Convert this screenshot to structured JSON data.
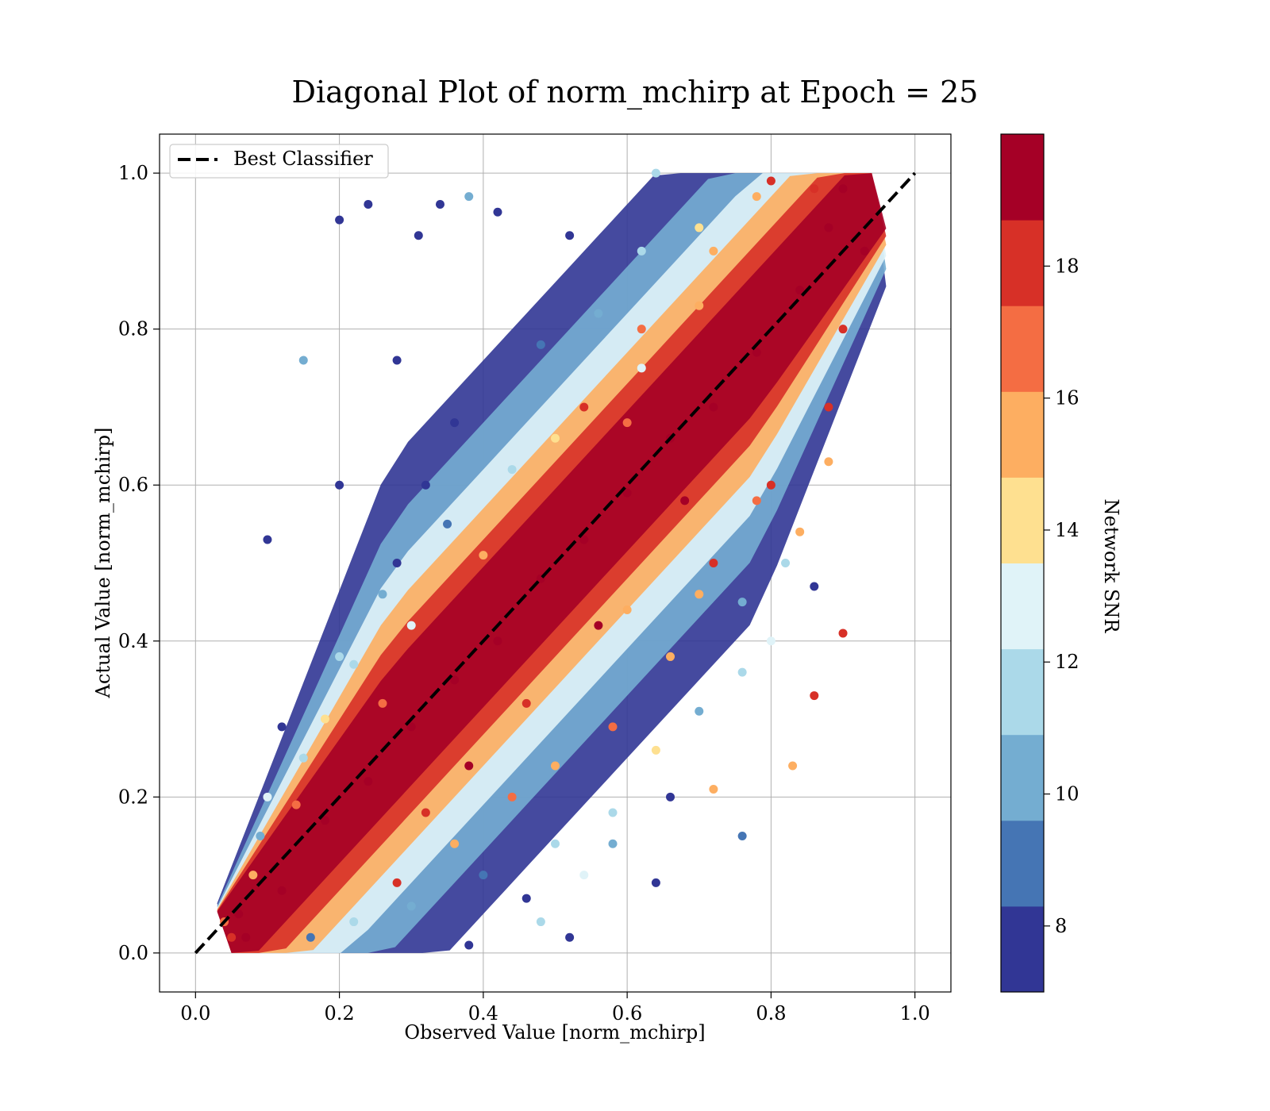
{
  "chart_data": {
    "type": "scatter",
    "title": "Diagonal Plot of norm_mchirp at Epoch = 25",
    "xlabel": "Observed Value [norm_mchirp]",
    "ylabel": "Actual Value [norm_mchirp]",
    "xlim": [
      -0.05,
      1.05
    ],
    "ylim": [
      -0.05,
      1.05
    ],
    "x_ticks": [
      "0.0",
      "0.2",
      "0.4",
      "0.6",
      "0.8",
      "1.0"
    ],
    "y_ticks": [
      "0.0",
      "0.2",
      "0.4",
      "0.6",
      "0.8",
      "1.0"
    ],
    "grid": true,
    "legend": {
      "position": "top-left",
      "entries": [
        {
          "label": "Best Classifier",
          "style": "black dashed line"
        }
      ]
    },
    "reference_line": {
      "label": "Best Classifier",
      "x": [
        0.0,
        1.0
      ],
      "y": [
        0.0,
        1.0
      ],
      "color": "#000000",
      "dash": "dashed"
    },
    "colorbar": {
      "label": "Network SNR",
      "range": [
        7,
        20
      ],
      "ticks": [
        "8",
        "10",
        "12",
        "14",
        "16",
        "18"
      ],
      "tick_values": [
        8,
        10,
        12,
        14,
        16,
        18
      ],
      "colormap": "RdYlBu_r (discrete, 10 levels)",
      "colors": [
        "#313695",
        "#4575b4",
        "#74add1",
        "#abd9e9",
        "#e0f3f8",
        "#fee090",
        "#fdae61",
        "#f46d43",
        "#d73027",
        "#a50026"
      ]
    },
    "points": [
      [
        0.07,
        0.02,
        19
      ],
      [
        0.12,
        0.08,
        19
      ],
      [
        0.18,
        0.17,
        19
      ],
      [
        0.24,
        0.22,
        19
      ],
      [
        0.3,
        0.29,
        19
      ],
      [
        0.36,
        0.35,
        19
      ],
      [
        0.42,
        0.4,
        19
      ],
      [
        0.48,
        0.48,
        19
      ],
      [
        0.54,
        0.53,
        19
      ],
      [
        0.6,
        0.59,
        19
      ],
      [
        0.66,
        0.66,
        19
      ],
      [
        0.72,
        0.7,
        19
      ],
      [
        0.78,
        0.77,
        19
      ],
      [
        0.84,
        0.85,
        19
      ],
      [
        0.88,
        0.93,
        19
      ],
      [
        0.93,
        0.9,
        19
      ],
      [
        0.86,
        0.98,
        18
      ],
      [
        0.78,
        0.97,
        16
      ],
      [
        0.7,
        0.93,
        14
      ],
      [
        0.62,
        0.9,
        11
      ],
      [
        0.52,
        0.92,
        8
      ],
      [
        0.42,
        0.95,
        8
      ],
      [
        0.31,
        0.92,
        8
      ],
      [
        0.2,
        0.94,
        8
      ],
      [
        0.24,
        0.96,
        8
      ],
      [
        0.34,
        0.96,
        8
      ],
      [
        0.38,
        0.97,
        10
      ],
      [
        0.64,
        1.0,
        11
      ],
      [
        0.1,
        0.53,
        8
      ],
      [
        0.15,
        0.76,
        10
      ],
      [
        0.2,
        0.6,
        8
      ],
      [
        0.28,
        0.76,
        8
      ],
      [
        0.36,
        0.68,
        8
      ],
      [
        0.48,
        0.78,
        9
      ],
      [
        0.56,
        0.82,
        10
      ],
      [
        0.62,
        0.75,
        13
      ],
      [
        0.7,
        0.83,
        16
      ],
      [
        0.28,
        0.5,
        8
      ],
      [
        0.35,
        0.55,
        9
      ],
      [
        0.44,
        0.62,
        11
      ],
      [
        0.5,
        0.66,
        14
      ],
      [
        0.4,
        0.51,
        15
      ],
      [
        0.22,
        0.37,
        11
      ],
      [
        0.15,
        0.25,
        12
      ],
      [
        0.18,
        0.3,
        14
      ],
      [
        0.3,
        0.42,
        13
      ],
      [
        0.26,
        0.32,
        17
      ],
      [
        0.09,
        0.15,
        10
      ],
      [
        0.1,
        0.2,
        13
      ],
      [
        0.14,
        0.19,
        17
      ],
      [
        0.6,
        0.68,
        17
      ],
      [
        0.8,
        0.6,
        18
      ],
      [
        0.84,
        0.54,
        16
      ],
      [
        0.9,
        0.41,
        18
      ],
      [
        0.86,
        0.33,
        18
      ],
      [
        0.86,
        0.47,
        8
      ],
      [
        0.83,
        0.24,
        15
      ],
      [
        0.72,
        0.21,
        16
      ],
      [
        0.76,
        0.15,
        9
      ],
      [
        0.64,
        0.09,
        8
      ],
      [
        0.52,
        0.02,
        8
      ],
      [
        0.38,
        0.01,
        8
      ],
      [
        0.3,
        0.06,
        10
      ],
      [
        0.4,
        0.1,
        9
      ],
      [
        0.46,
        0.07,
        8
      ],
      [
        0.5,
        0.14,
        11
      ],
      [
        0.58,
        0.18,
        12
      ],
      [
        0.64,
        0.26,
        14
      ],
      [
        0.7,
        0.31,
        10
      ],
      [
        0.76,
        0.36,
        11
      ],
      [
        0.8,
        0.4,
        13
      ],
      [
        0.66,
        0.38,
        16
      ],
      [
        0.58,
        0.29,
        17
      ],
      [
        0.5,
        0.24,
        15
      ],
      [
        0.44,
        0.2,
        17
      ],
      [
        0.36,
        0.14,
        16
      ],
      [
        0.28,
        0.09,
        18
      ],
      [
        0.22,
        0.04,
        11
      ],
      [
        0.16,
        0.02,
        9
      ],
      [
        0.72,
        0.5,
        18
      ],
      [
        0.78,
        0.58,
        17
      ],
      [
        0.88,
        0.7,
        18
      ],
      [
        0.9,
        0.8,
        18
      ],
      [
        0.88,
        0.63,
        15
      ],
      [
        0.68,
        0.58,
        19
      ],
      [
        0.56,
        0.42,
        19
      ],
      [
        0.46,
        0.32,
        18
      ],
      [
        0.38,
        0.24,
        19
      ],
      [
        0.32,
        0.18,
        18
      ],
      [
        0.54,
        0.7,
        18
      ],
      [
        0.62,
        0.8,
        17
      ],
      [
        0.72,
        0.9,
        15
      ],
      [
        0.8,
        0.99,
        18
      ],
      [
        0.9,
        0.98,
        19
      ],
      [
        0.6,
        0.44,
        16
      ],
      [
        0.7,
        0.46,
        15
      ],
      [
        0.82,
        0.5,
        12
      ],
      [
        0.76,
        0.45,
        10
      ],
      [
        0.66,
        0.2,
        8
      ],
      [
        0.58,
        0.14,
        10
      ],
      [
        0.54,
        0.1,
        13
      ],
      [
        0.48,
        0.04,
        12
      ],
      [
        0.32,
        0.6,
        8
      ],
      [
        0.26,
        0.46,
        10
      ],
      [
        0.2,
        0.38,
        12
      ],
      [
        0.12,
        0.29,
        8
      ],
      [
        0.06,
        0.05,
        19
      ],
      [
        0.05,
        0.02,
        18
      ],
      [
        0.04,
        0.04,
        17
      ],
      [
        0.08,
        0.1,
        16
      ]
    ]
  }
}
